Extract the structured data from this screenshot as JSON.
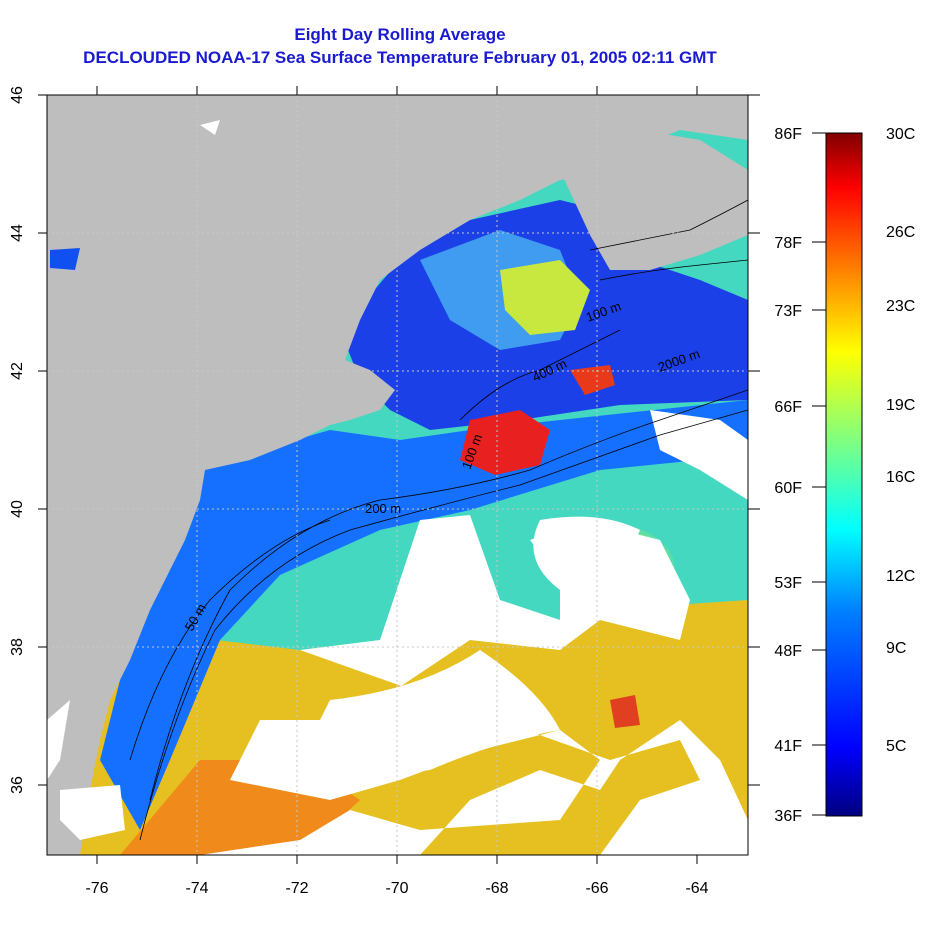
{
  "title_line1": "Eight Day Rolling Average",
  "title_line2": "DECLOUDED NOAA-17 Sea Surface Temperature February 01, 2005 02:11 GMT",
  "map": {
    "lon_range": [
      -77,
      -63
    ],
    "lat_range": [
      35,
      46
    ],
    "lon_ticks": [
      "-76",
      "-74",
      "-72",
      "-70",
      "-68",
      "-66",
      "-64"
    ],
    "lat_ticks": [
      "36",
      "38",
      "40",
      "42",
      "44",
      "46"
    ],
    "contour_labels": [
      "50 m",
      "200 m",
      "100 m",
      "100 m",
      "400 m",
      "2000 m"
    ],
    "colors": {
      "land": "#bebebe",
      "cloud": "#ffffff",
      "grid": "#c8c8c8"
    }
  },
  "colorbar": {
    "celsius_labels": [
      "30C",
      "26C",
      "23C",
      "19C",
      "16C",
      "12C",
      "9C",
      "5C"
    ],
    "fahrenheit_labels": [
      "86F",
      "78F",
      "73F",
      "66F",
      "60F",
      "53F",
      "48F",
      "41F",
      "36F"
    ],
    "stops": [
      "#000080",
      "#0000ff",
      "#0080ff",
      "#00ffff",
      "#80ff80",
      "#ffff00",
      "#ff8000",
      "#ff0000",
      "#800000"
    ]
  }
}
